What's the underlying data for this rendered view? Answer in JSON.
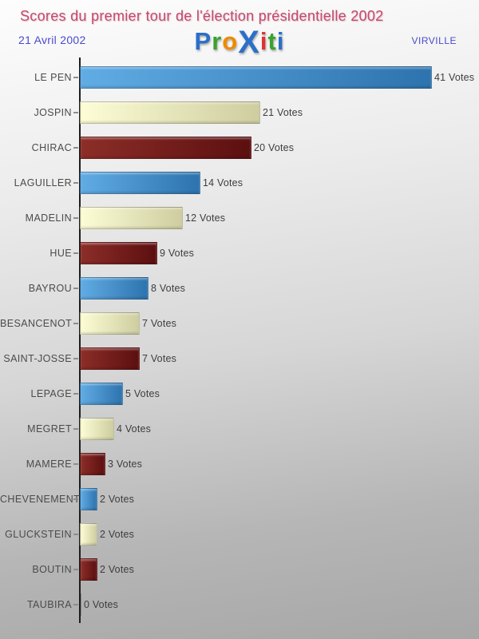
{
  "header": {
    "title": "Scores du premier tour de l'élection présidentielle 2002",
    "title_color": "#c44a6a",
    "date": "21 Avril 2002",
    "city": "VIRVILLE",
    "subtext_color": "#4a4ace"
  },
  "logo": {
    "name": "Proxiti",
    "letters": [
      {
        "ch": "P",
        "color": "#2b6fc8",
        "big": false
      },
      {
        "ch": "r",
        "color": "#38a32e",
        "big": false
      },
      {
        "ch": "o",
        "color": "#f08a00",
        "big": false
      },
      {
        "ch": "X",
        "color": "#2b6fc8",
        "big": true
      },
      {
        "ch": "i",
        "color": "#e03232",
        "big": false
      },
      {
        "ch": "t",
        "color": "#38a32e",
        "big": false
      },
      {
        "ch": "i",
        "color": "#2b6fc8",
        "big": false
      }
    ]
  },
  "chart_data": {
    "type": "bar",
    "orientation": "horizontal",
    "title": "Scores du premier tour de l'élection présidentielle 2002",
    "unit": "Votes",
    "categories": [
      "LE PEN",
      "JOSPIN",
      "CHIRAC",
      "LAGUILLER",
      "MADELIN",
      "HUE",
      "BAYROU",
      "BESANCENOT",
      "SAINT-JOSSE",
      "LEPAGE",
      "MEGRET",
      "MAMERE",
      "CHEVENEMENT",
      "GLUCKSTEIN",
      "BOUTIN",
      "TAUBIRA"
    ],
    "values": [
      41,
      21,
      20,
      14,
      12,
      9,
      8,
      7,
      7,
      5,
      4,
      3,
      2,
      2,
      2,
      0
    ],
    "xlim": [
      0,
      41
    ],
    "grid": false,
    "legend": false,
    "value_label_format": "{value} {unit}",
    "palette": [
      {
        "name": "blue",
        "from": "#61ace4",
        "to": "#2d73ae"
      },
      {
        "name": "cream",
        "from": "#fdfdd6",
        "to": "#cecda0"
      },
      {
        "name": "darkred",
        "from": "#8c2e28",
        "to": "#5c0f10"
      }
    ],
    "axis_color": "#1c1c1c",
    "label_color": "#4b4b4b",
    "value_color": "#3d3d3d"
  }
}
